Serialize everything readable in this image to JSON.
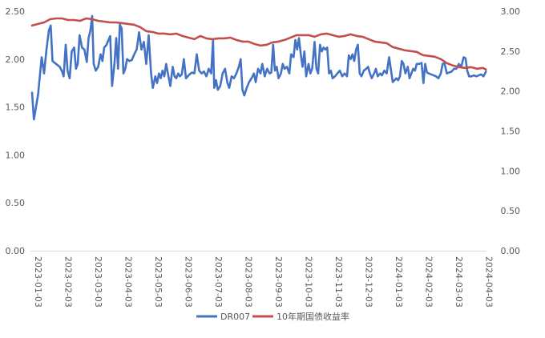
{
  "chart_data": {
    "type": "line",
    "title": "",
    "x": [
      "2023-01-03",
      "2023-02-03",
      "2023-03-03",
      "2023-04-03",
      "2023-05-03",
      "2023-06-03",
      "2023-07-03",
      "2023-08-03",
      "2023-09-03",
      "2023-10-03",
      "2023-11-03",
      "2023-12-03",
      "2024-01-03",
      "2024-02-03",
      "2024-03-03",
      "2024-04-03"
    ],
    "y_left": {
      "ylim": [
        0,
        2.5
      ],
      "ticks": [
        "0.00",
        "0.50",
        "1.00",
        "1.50",
        "2.00",
        "2.50"
      ]
    },
    "y_right": {
      "ylim": [
        0,
        3.0
      ],
      "ticks": [
        "0.00",
        "0.50",
        "1.00",
        "1.50",
        "2.00",
        "2.50",
        "3.00"
      ]
    },
    "grid": false,
    "legend_position": "bottom",
    "series": [
      {
        "name": "DR007",
        "axis": "left",
        "color": "#4472C4",
        "points": [
          [
            0.0,
            1.65
          ],
          [
            0.06,
            1.37
          ],
          [
            0.2,
            1.63
          ],
          [
            0.32,
            2.02
          ],
          [
            0.4,
            1.85
          ],
          [
            0.48,
            2.1
          ],
          [
            0.56,
            2.3
          ],
          [
            0.62,
            2.35
          ],
          [
            0.68,
            1.98
          ],
          [
            0.8,
            1.95
          ],
          [
            0.92,
            1.92
          ],
          [
            1.0,
            1.87
          ],
          [
            1.05,
            1.82
          ],
          [
            1.12,
            2.15
          ],
          [
            1.18,
            1.88
          ],
          [
            1.25,
            1.8
          ],
          [
            1.32,
            2.08
          ],
          [
            1.4,
            2.12
          ],
          [
            1.46,
            1.9
          ],
          [
            1.52,
            1.95
          ],
          [
            1.58,
            2.25
          ],
          [
            1.66,
            2.12
          ],
          [
            1.74,
            2.1
          ],
          [
            1.82,
            1.97
          ],
          [
            1.88,
            2.22
          ],
          [
            1.94,
            2.3
          ],
          [
            2.0,
            2.45
          ],
          [
            2.05,
            1.95
          ],
          [
            2.12,
            1.88
          ],
          [
            2.2,
            1.92
          ],
          [
            2.28,
            2.05
          ],
          [
            2.34,
            1.98
          ],
          [
            2.4,
            2.12
          ],
          [
            2.48,
            2.15
          ],
          [
            2.54,
            2.2
          ],
          [
            2.6,
            2.24
          ],
          [
            2.66,
            1.72
          ],
          [
            2.74,
            1.95
          ],
          [
            2.8,
            2.22
          ],
          [
            2.86,
            1.9
          ],
          [
            2.92,
            2.36
          ],
          [
            2.98,
            2.32
          ],
          [
            3.04,
            1.85
          ],
          [
            3.1,
            1.9
          ],
          [
            3.16,
            2.0
          ],
          [
            3.24,
            1.98
          ],
          [
            3.32,
            1.99
          ],
          [
            3.4,
            2.05
          ],
          [
            3.48,
            2.1
          ],
          [
            3.56,
            2.28
          ],
          [
            3.64,
            2.1
          ],
          [
            3.72,
            2.18
          ],
          [
            3.8,
            1.95
          ],
          [
            3.88,
            2.25
          ],
          [
            3.96,
            1.85
          ],
          [
            4.02,
            1.7
          ],
          [
            4.1,
            1.82
          ],
          [
            4.16,
            1.75
          ],
          [
            4.22,
            1.85
          ],
          [
            4.28,
            1.8
          ],
          [
            4.34,
            1.88
          ],
          [
            4.4,
            1.82
          ],
          [
            4.46,
            1.95
          ],
          [
            4.52,
            1.85
          ],
          [
            4.6,
            1.72
          ],
          [
            4.68,
            1.92
          ],
          [
            4.74,
            1.82
          ],
          [
            4.8,
            1.8
          ],
          [
            4.86,
            1.85
          ],
          [
            4.92,
            1.82
          ],
          [
            4.98,
            1.84
          ],
          [
            5.05,
            2.0
          ],
          [
            5.12,
            1.8
          ],
          [
            5.18,
            1.82
          ],
          [
            5.24,
            1.84
          ],
          [
            5.32,
            1.86
          ],
          [
            5.4,
            1.85
          ],
          [
            5.48,
            2.05
          ],
          [
            5.56,
            1.88
          ],
          [
            5.64,
            1.85
          ],
          [
            5.72,
            1.87
          ],
          [
            5.8,
            1.82
          ],
          [
            5.88,
            1.9
          ],
          [
            5.96,
            1.85
          ],
          [
            6.02,
            2.2
          ],
          [
            6.06,
            1.7
          ],
          [
            6.12,
            1.78
          ],
          [
            6.18,
            1.68
          ],
          [
            6.26,
            1.72
          ],
          [
            6.34,
            1.85
          ],
          [
            6.42,
            1.9
          ],
          [
            6.5,
            1.75
          ],
          [
            6.56,
            1.7
          ],
          [
            6.64,
            1.82
          ],
          [
            6.72,
            1.8
          ],
          [
            6.8,
            1.85
          ],
          [
            6.88,
            1.92
          ],
          [
            6.94,
            2.0
          ],
          [
            7.0,
            1.68
          ],
          [
            7.06,
            1.62
          ],
          [
            7.14,
            1.7
          ],
          [
            7.22,
            1.76
          ],
          [
            7.3,
            1.8
          ],
          [
            7.38,
            1.85
          ],
          [
            7.44,
            1.76
          ],
          [
            7.52,
            1.9
          ],
          [
            7.6,
            1.85
          ],
          [
            7.66,
            1.95
          ],
          [
            7.74,
            1.82
          ],
          [
            7.82,
            1.9
          ],
          [
            7.9,
            1.85
          ],
          [
            7.96,
            1.86
          ],
          [
            8.02,
            2.15
          ],
          [
            8.08,
            1.88
          ],
          [
            8.14,
            1.92
          ],
          [
            8.2,
            1.8
          ],
          [
            8.28,
            1.85
          ],
          [
            8.34,
            1.95
          ],
          [
            8.4,
            1.9
          ],
          [
            8.48,
            1.92
          ],
          [
            8.56,
            1.85
          ],
          [
            8.62,
            2.05
          ],
          [
            8.7,
            2.02
          ],
          [
            8.76,
            2.2
          ],
          [
            8.82,
            2.1
          ],
          [
            8.88,
            2.22
          ],
          [
            8.94,
            2.05
          ],
          [
            9.0,
            1.92
          ],
          [
            9.06,
            2.08
          ],
          [
            9.12,
            1.82
          ],
          [
            9.2,
            1.95
          ],
          [
            9.26,
            1.85
          ],
          [
            9.32,
            1.9
          ],
          [
            9.4,
            2.18
          ],
          [
            9.46,
            1.9
          ],
          [
            9.52,
            1.85
          ],
          [
            9.58,
            2.15
          ],
          [
            9.64,
            2.08
          ],
          [
            9.7,
            2.12
          ],
          [
            9.76,
            2.1
          ],
          [
            9.82,
            2.12
          ],
          [
            9.88,
            1.85
          ],
          [
            9.94,
            1.88
          ],
          [
            10.0,
            1.8
          ],
          [
            10.08,
            1.82
          ],
          [
            10.16,
            1.85
          ],
          [
            10.24,
            1.88
          ],
          [
            10.32,
            1.82
          ],
          [
            10.4,
            1.85
          ],
          [
            10.48,
            1.82
          ],
          [
            10.54,
            2.04
          ],
          [
            10.6,
            2.0
          ],
          [
            10.66,
            2.05
          ],
          [
            10.72,
            1.98
          ],
          [
            10.78,
            2.1
          ],
          [
            10.84,
            2.15
          ],
          [
            10.9,
            1.85
          ],
          [
            10.96,
            1.82
          ],
          [
            11.04,
            1.88
          ],
          [
            11.12,
            1.9
          ],
          [
            11.18,
            1.92
          ],
          [
            11.24,
            1.85
          ],
          [
            11.3,
            1.8
          ],
          [
            11.38,
            1.85
          ],
          [
            11.44,
            1.9
          ],
          [
            11.5,
            1.82
          ],
          [
            11.58,
            1.85
          ],
          [
            11.64,
            1.83
          ],
          [
            11.72,
            1.88
          ],
          [
            11.8,
            1.85
          ],
          [
            11.88,
            2.02
          ],
          [
            12.0,
            1.76
          ],
          [
            12.06,
            1.78
          ],
          [
            12.12,
            1.8
          ],
          [
            12.18,
            1.78
          ],
          [
            12.24,
            1.82
          ],
          [
            12.3,
            1.98
          ],
          [
            12.36,
            1.95
          ],
          [
            12.42,
            1.85
          ],
          [
            12.5,
            1.92
          ],
          [
            12.56,
            1.8
          ],
          [
            12.62,
            1.85
          ],
          [
            12.68,
            1.9
          ],
          [
            12.74,
            1.88
          ],
          [
            12.8,
            1.95
          ],
          [
            12.88,
            1.95
          ],
          [
            12.96,
            1.96
          ],
          [
            13.02,
            1.75
          ],
          [
            13.08,
            1.95
          ],
          [
            13.14,
            1.86
          ],
          [
            13.2,
            1.85
          ],
          [
            13.28,
            1.84
          ],
          [
            13.36,
            1.83
          ],
          [
            13.44,
            1.82
          ],
          [
            13.52,
            1.8
          ],
          [
            13.6,
            1.85
          ],
          [
            13.66,
            1.95
          ],
          [
            13.72,
            1.96
          ],
          [
            13.8,
            1.85
          ],
          [
            13.88,
            1.86
          ],
          [
            13.96,
            1.87
          ],
          [
            14.04,
            1.9
          ],
          [
            14.12,
            1.9
          ],
          [
            14.2,
            1.95
          ],
          [
            14.28,
            1.92
          ],
          [
            14.36,
            2.02
          ],
          [
            14.42,
            2.01
          ],
          [
            14.48,
            1.88
          ],
          [
            14.54,
            1.82
          ],
          [
            14.62,
            1.82
          ],
          [
            14.7,
            1.83
          ],
          [
            14.78,
            1.82
          ],
          [
            14.86,
            1.83
          ],
          [
            14.94,
            1.84
          ],
          [
            15.02,
            1.82
          ],
          [
            15.1,
            1.87
          ]
        ]
      },
      {
        "name": "10年期国债收益率",
        "axis": "right",
        "color": "#C0504D",
        "points": [
          [
            0.0,
            2.82
          ],
          [
            0.2,
            2.84
          ],
          [
            0.4,
            2.86
          ],
          [
            0.6,
            2.9
          ],
          [
            0.8,
            2.91
          ],
          [
            1.0,
            2.91
          ],
          [
            1.2,
            2.89
          ],
          [
            1.4,
            2.89
          ],
          [
            1.6,
            2.88
          ],
          [
            1.8,
            2.91
          ],
          [
            2.0,
            2.9
          ],
          [
            2.2,
            2.88
          ],
          [
            2.4,
            2.87
          ],
          [
            2.6,
            2.86
          ],
          [
            2.8,
            2.86
          ],
          [
            3.0,
            2.85
          ],
          [
            3.2,
            2.84
          ],
          [
            3.4,
            2.83
          ],
          [
            3.6,
            2.8
          ],
          [
            3.8,
            2.75
          ],
          [
            4.0,
            2.74
          ],
          [
            4.2,
            2.72
          ],
          [
            4.4,
            2.72
          ],
          [
            4.6,
            2.71
          ],
          [
            4.8,
            2.72
          ],
          [
            5.0,
            2.69
          ],
          [
            5.2,
            2.67
          ],
          [
            5.4,
            2.65
          ],
          [
            5.6,
            2.69
          ],
          [
            5.8,
            2.66
          ],
          [
            6.0,
            2.65
          ],
          [
            6.2,
            2.66
          ],
          [
            6.4,
            2.66
          ],
          [
            6.6,
            2.67
          ],
          [
            6.8,
            2.64
          ],
          [
            7.0,
            2.62
          ],
          [
            7.2,
            2.62
          ],
          [
            7.4,
            2.59
          ],
          [
            7.6,
            2.57
          ],
          [
            7.8,
            2.58
          ],
          [
            8.0,
            2.61
          ],
          [
            8.2,
            2.62
          ],
          [
            8.4,
            2.64
          ],
          [
            8.6,
            2.67
          ],
          [
            8.8,
            2.7
          ],
          [
            9.0,
            2.7
          ],
          [
            9.2,
            2.7
          ],
          [
            9.4,
            2.68
          ],
          [
            9.6,
            2.71
          ],
          [
            9.8,
            2.72
          ],
          [
            10.0,
            2.7
          ],
          [
            10.2,
            2.68
          ],
          [
            10.4,
            2.69
          ],
          [
            10.6,
            2.71
          ],
          [
            10.8,
            2.69
          ],
          [
            11.0,
            2.68
          ],
          [
            11.2,
            2.65
          ],
          [
            11.4,
            2.62
          ],
          [
            11.6,
            2.61
          ],
          [
            11.8,
            2.6
          ],
          [
            12.0,
            2.55
          ],
          [
            12.2,
            2.53
          ],
          [
            12.4,
            2.51
          ],
          [
            12.6,
            2.5
          ],
          [
            12.8,
            2.49
          ],
          [
            13.0,
            2.45
          ],
          [
            13.2,
            2.44
          ],
          [
            13.4,
            2.43
          ],
          [
            13.6,
            2.4
          ],
          [
            13.8,
            2.35
          ],
          [
            14.0,
            2.32
          ],
          [
            14.2,
            2.3
          ],
          [
            14.4,
            2.29
          ],
          [
            14.6,
            2.3
          ],
          [
            14.8,
            2.28
          ],
          [
            15.0,
            2.29
          ],
          [
            15.1,
            2.27
          ]
        ]
      }
    ]
  }
}
